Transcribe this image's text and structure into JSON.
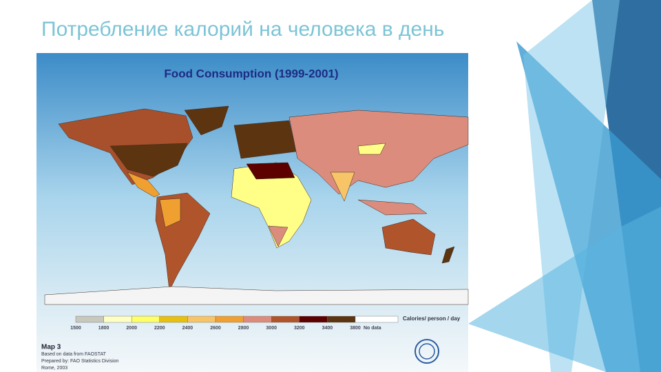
{
  "slide": {
    "title": "Потребление калорий на человека в день"
  },
  "map": {
    "title": "Food Consumption (1999-2001)",
    "legend": {
      "unit": "Calories/ person / day",
      "breaks": [
        1500,
        1800,
        2000,
        2200,
        2400,
        2600,
        2800,
        3000,
        3200,
        3400,
        3800
      ],
      "colors": [
        "#c8c8bc",
        "#ffffc4",
        "#ffff66",
        "#e8c010",
        "#f8c468",
        "#f0a030",
        "#dc8c7c",
        "#b0542c",
        "#5c0000",
        "#5c3410"
      ],
      "no_data": "No data",
      "no_data_color": "#ffffff"
    },
    "note": {
      "heading": "Map 3",
      "lines": [
        "Based on data from FAOSTAT",
        "Prepared by: FAO Statistics Division",
        "Rome, 2003"
      ]
    }
  }
}
